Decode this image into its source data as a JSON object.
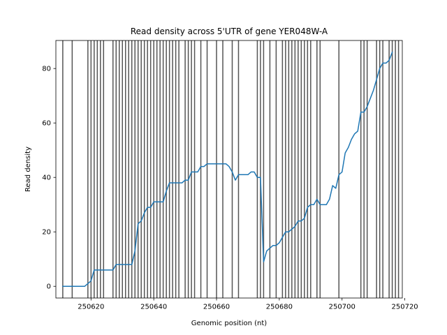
{
  "chart_data": {
    "type": "line",
    "title": "Read density across 5'UTR of gene YER048W-A",
    "xlabel": "Genomic position (nt)",
    "ylabel": "Read density",
    "xlim": [
      250608.8,
      250719.2
    ],
    "ylim": [
      -4.3,
      90.3
    ],
    "grid": false,
    "xticks": [
      250620,
      250640,
      250660,
      250680,
      250700,
      250720
    ],
    "yticks": [
      0,
      20,
      40,
      60,
      80
    ],
    "line_color": "#1f77b4",
    "vline_color": "#555555",
    "vertical_lines": [
      250611,
      250614,
      250619,
      250620,
      250621,
      250622,
      250623,
      250624,
      250627,
      250628,
      250629,
      250630,
      250631,
      250632,
      250633,
      250634,
      250635,
      250636,
      250637,
      250638,
      250639,
      250640,
      250641,
      250642,
      250643,
      250644,
      250645,
      250646,
      250647,
      250648,
      250650,
      250651,
      250652,
      250653,
      250655,
      250657,
      250660,
      250662,
      250665,
      250667,
      250673,
      250674,
      250675,
      250677,
      250679,
      250681,
      250682,
      250683,
      250684,
      250685,
      250686,
      250687,
      250688,
      250689,
      250690,
      250692,
      250693,
      250699,
      250706,
      250707,
      250708,
      250711,
      250712,
      250713,
      250715,
      250716,
      250717,
      250718
    ],
    "series": [
      {
        "x": [
          250611,
          250612,
          250613,
          250614,
          250615,
          250616,
          250617,
          250618,
          250619,
          250620,
          250621,
          250622,
          250623,
          250624,
          250625,
          250626,
          250627,
          250628,
          250629,
          250630,
          250631,
          250632,
          250633,
          250634,
          250635,
          250636,
          250637,
          250638,
          250639,
          250640,
          250641,
          250642,
          250643,
          250644,
          250645,
          250646,
          250647,
          250648,
          250649,
          250650,
          250651,
          250652,
          250653,
          250654,
          250655,
          250656,
          250657,
          250658,
          250659,
          250660,
          250661,
          250662,
          250663,
          250664,
          250665,
          250666,
          250667,
          250668,
          250669,
          250670,
          250671,
          250672,
          250673,
          250674,
          250675,
          250676,
          250677,
          250678,
          250679,
          250680,
          250681,
          250682,
          250683,
          250684,
          250685,
          250686,
          250687,
          250688,
          250689,
          250690,
          250691,
          250692,
          250693,
          250694,
          250695,
          250696,
          250697,
          250698,
          250699,
          250700,
          250701,
          250702,
          250703,
          250704,
          250705,
          250706,
          250707,
          250708,
          250709,
          250710,
          250711,
          250712,
          250713,
          250714,
          250715,
          250716
        ],
        "values": [
          0,
          0,
          0,
          0,
          0,
          0,
          0,
          0,
          1,
          2,
          6,
          6,
          6,
          6,
          6,
          6,
          6,
          8,
          8,
          8,
          8,
          8,
          8,
          13,
          23,
          24,
          27,
          29,
          29,
          31,
          31,
          31,
          31,
          35,
          38,
          38,
          38,
          38,
          38,
          39,
          39,
          42,
          42,
          42,
          44,
          44,
          45,
          45,
          45,
          45,
          45,
          45,
          45,
          44,
          42,
          39,
          41,
          41,
          41,
          41,
          42,
          42,
          40,
          40,
          9,
          13,
          14,
          15,
          15,
          16,
          18,
          20,
          20,
          21,
          22,
          24,
          24,
          25,
          29,
          30,
          30,
          32,
          30,
          30,
          30,
          32,
          37,
          36,
          41,
          42,
          49,
          51,
          54,
          56,
          57,
          64,
          64,
          66,
          69,
          72,
          76,
          80,
          82,
          82,
          83,
          86
        ]
      }
    ]
  }
}
